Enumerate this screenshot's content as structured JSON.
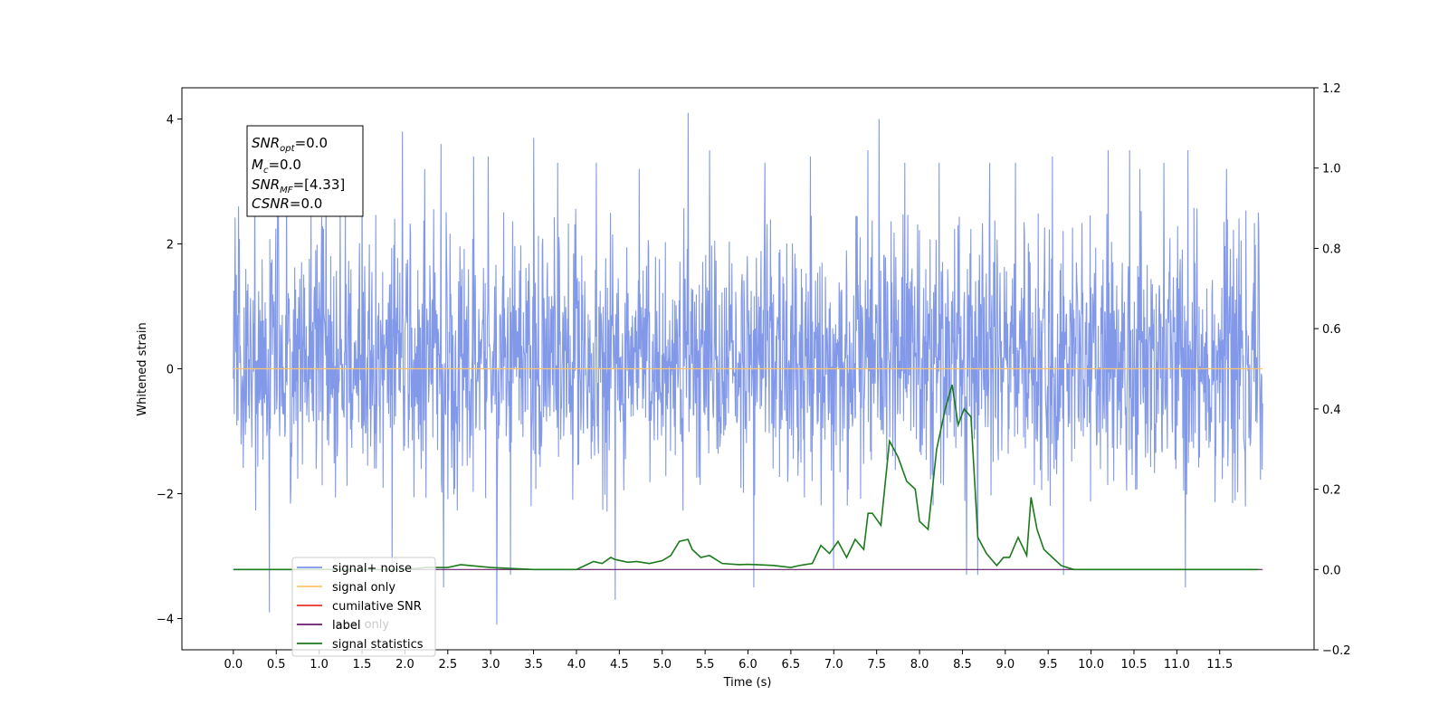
{
  "chart_data": {
    "type": "line",
    "xlabel": "Time (s)",
    "ylabel": "Whitened strain",
    "ylabel_right": "",
    "xlim": [
      -0.6,
      12.6
    ],
    "ylim": [
      -4.5,
      4.5
    ],
    "ylim_right": [
      -0.2,
      1.2
    ],
    "x_ticks": [
      "0.0",
      "0.5",
      "1.0",
      "1.5",
      "2.0",
      "2.5",
      "3.0",
      "3.5",
      "4.0",
      "4.5",
      "5.0",
      "5.5",
      "6.0",
      "6.5",
      "7.0",
      "7.5",
      "8.0",
      "8.5",
      "9.0",
      "9.5",
      "10.0",
      "10.5",
      "11.0",
      "11.5"
    ],
    "y_ticks": [
      "4",
      "2",
      "0",
      "−2",
      "−4"
    ],
    "y_ticks_right": [
      "1.2",
      "1.0",
      "0.8",
      "0.6",
      "0.4",
      "0.2",
      "0.0",
      "−0.2"
    ],
    "grid": false,
    "legend_position": "lower-left",
    "legend": [
      {
        "label": "signal+ noise",
        "color": "#7b93e8"
      },
      {
        "label": "signal only",
        "color": "#ffc56b"
      },
      {
        "label": "cumilative SNR",
        "color": "#e8322b"
      },
      {
        "label": "label",
        "color": "#6a1a6a"
      },
      {
        "label": "signal statistics",
        "color": "#1b7a1b"
      }
    ],
    "legend_hidden_text": "label only",
    "annotation": {
      "snr_opt": {
        "main": "SNR",
        "sub": "opt",
        "value": "=0.0"
      },
      "mc": {
        "main": "M",
        "sub": "c",
        "value": "=0.0"
      },
      "snr_mf": {
        "main": "SNR",
        "sub": "MF",
        "value": "=[4.33]"
      },
      "csnr": {
        "main": "CSNR",
        "value": "=0.0"
      }
    },
    "series": [
      {
        "name": "signal+ noise",
        "axis": "left",
        "color": "#7b93e8",
        "x_range": [
          0,
          12
        ],
        "std": 0.95,
        "envelope": [
          -2.3,
          2.6
        ],
        "spikes_up": [
          [
            0.06,
            2.6
          ],
          [
            0.25,
            3.4
          ],
          [
            0.62,
            3.3
          ],
          [
            1.08,
            3.3
          ],
          [
            1.5,
            3.4
          ],
          [
            1.97,
            3.8
          ],
          [
            2.23,
            3.2
          ],
          [
            2.42,
            3.6
          ],
          [
            2.8,
            3.4
          ],
          [
            2.97,
            3.4
          ],
          [
            3.5,
            3.7
          ],
          [
            3.78,
            3.3
          ],
          [
            4.23,
            3.3
          ],
          [
            4.45,
            3.6
          ],
          [
            4.73,
            3.2
          ],
          [
            5.3,
            4.1
          ],
          [
            5.55,
            3.5
          ],
          [
            6.2,
            3.3
          ],
          [
            6.73,
            3.4
          ],
          [
            7.4,
            3.5
          ],
          [
            7.53,
            4.0
          ],
          [
            7.83,
            3.3
          ],
          [
            8.23,
            3.3
          ],
          [
            8.82,
            3.3
          ],
          [
            9.12,
            3.3
          ],
          [
            9.55,
            3.4
          ],
          [
            10.2,
            3.5
          ],
          [
            10.45,
            3.5
          ],
          [
            10.57,
            3.2
          ],
          [
            10.85,
            3.3
          ],
          [
            11.13,
            3.5
          ],
          [
            11.58,
            3.2
          ]
        ],
        "spikes_down": [
          [
            0.42,
            -3.9
          ],
          [
            1.85,
            -3.3
          ],
          [
            2.45,
            -3.5
          ],
          [
            3.07,
            -4.1
          ],
          [
            3.23,
            -3.3
          ],
          [
            4.45,
            -3.7
          ],
          [
            6.07,
            -3.5
          ],
          [
            7.0,
            -3.2
          ],
          [
            8.55,
            -3.3
          ],
          [
            8.68,
            -3.3
          ],
          [
            9.68,
            -3.3
          ],
          [
            11.1,
            -3.5
          ]
        ]
      },
      {
        "name": "signal only",
        "axis": "left",
        "color": "#ffc56b",
        "x": [
          0,
          12
        ],
        "y": [
          0,
          0
        ]
      },
      {
        "name": "label",
        "axis": "right",
        "color": "#6a1a6a",
        "x": [
          0,
          12
        ],
        "y": [
          0,
          0
        ]
      },
      {
        "name": "signal statistics",
        "axis": "right",
        "color": "#1b7a1b",
        "x": [
          0,
          0.5,
          1.0,
          1.5,
          2.0,
          2.25,
          2.5,
          2.65,
          2.75,
          3.0,
          3.5,
          4.0,
          4.1,
          4.2,
          4.3,
          4.4,
          4.45,
          4.6,
          4.7,
          4.85,
          5.0,
          5.1,
          5.2,
          5.3,
          5.35,
          5.45,
          5.55,
          5.7,
          5.9,
          6.0,
          6.1,
          6.3,
          6.5,
          6.6,
          6.75,
          6.85,
          6.95,
          7.05,
          7.15,
          7.25,
          7.35,
          7.4,
          7.45,
          7.55,
          7.65,
          7.75,
          7.85,
          7.95,
          8.0,
          8.1,
          8.2,
          8.3,
          8.38,
          8.45,
          8.52,
          8.6,
          8.68,
          8.78,
          8.9,
          8.98,
          9.05,
          9.15,
          9.25,
          9.3,
          9.37,
          9.45,
          9.55,
          9.65,
          9.72,
          9.8,
          10.0,
          10.5,
          11.0,
          11.5,
          11.95
        ],
        "y": [
          0,
          0,
          0,
          0,
          0,
          0.005,
          0.005,
          0.012,
          0.01,
          0.005,
          0,
          0,
          0.01,
          0.02,
          0.015,
          0.03,
          0.025,
          0.018,
          0.02,
          0.015,
          0.022,
          0.035,
          0.07,
          0.075,
          0.05,
          0.03,
          0.035,
          0.015,
          0.012,
          0.013,
          0.012,
          0.01,
          0.005,
          0.01,
          0.015,
          0.06,
          0.04,
          0.07,
          0.03,
          0.075,
          0.05,
          0.14,
          0.14,
          0.11,
          0.32,
          0.28,
          0.22,
          0.2,
          0.12,
          0.1,
          0.3,
          0.4,
          0.46,
          0.36,
          0.4,
          0.38,
          0.08,
          0.04,
          0.01,
          0.03,
          0.03,
          0.08,
          0.035,
          0.18,
          0.1,
          0.05,
          0.03,
          0.01,
          0.005,
          0,
          0,
          0,
          0,
          0,
          0
        ]
      }
    ]
  }
}
